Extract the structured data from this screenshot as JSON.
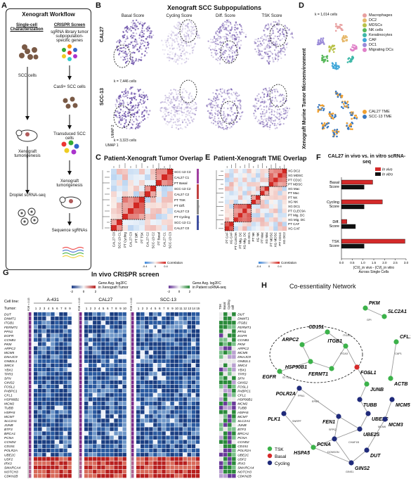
{
  "panelA": {
    "letter": "A",
    "title": "Xenograft Workflow",
    "left_header": "Single-cell Characterization",
    "right_header": "CRISPR Screen",
    "left_steps": [
      "SCC cells",
      "Xenograft tumorigenesis",
      "Droplet scRNA-seq"
    ],
    "right_steps": [
      "sgRNA library tumor subpopulation-specific genes",
      "Cas9+ SCC cells",
      "Transduced SCC cells",
      "Xenograft tumorigenesis",
      "Sequence sgRNAs"
    ]
  },
  "panelB": {
    "letter": "B",
    "title": "Xenograft SCC Subpopulations",
    "scores": [
      "Basal Score",
      "Cycling Score",
      "Diff. Score",
      "TSK Score"
    ],
    "rows": [
      {
        "label": "CAL27",
        "cells": "k = 7,446 cells"
      },
      {
        "label": "SCC-13",
        "cells": "k = 3,323 cells"
      }
    ],
    "umap1": "UMAP 1",
    "umap2": "UMAP 2"
  },
  "panelD": {
    "letter": "D",
    "side_title": "Xenograft Murine Tumor Microenvironment",
    "cells": "k = 1,014 cells",
    "legend1": [
      {
        "label": "Macrophages",
        "color": "#e8a0a0"
      },
      {
        "label": "DC2",
        "color": "#e6b86a"
      },
      {
        "label": "MDSCs",
        "color": "#b9c24a"
      },
      {
        "label": "NK cells",
        "color": "#57b85a"
      },
      {
        "label": "Keratinocytes",
        "color": "#3fb8a8"
      },
      {
        "label": "CAF",
        "color": "#3fa6d8"
      },
      {
        "label": "DC1",
        "color": "#9a8ad8"
      },
      {
        "label": "Migrating DCs",
        "color": "#e080c8"
      }
    ],
    "legend2": [
      {
        "label": "CAL27 TME",
        "color": "#f0a030"
      },
      {
        "label": "SCC-13 TME",
        "color": "#3a78c0"
      }
    ]
  },
  "panelC": {
    "letter": "C",
    "title": "Patient-Xenograft Tumor Overlap",
    "row_labels": [
      "SCC-13 C3",
      "CAL27 C1",
      "PT Basal",
      "SCC-13 C2",
      "CAL27 C2",
      "PT TSK",
      "PT Diff.",
      "CAL27 C3",
      "PT Cycling",
      "SCC-13 C1",
      "CAL27 C0"
    ],
    "col_labels": [
      "CAL27 C0",
      "SCC-13 C1",
      "PT Cycling",
      "CAL27 C3",
      "PT Diff.",
      "PT TSK",
      "CAL27 C2",
      "SCC-13 C2",
      "PT Basal",
      "CAL27 C1",
      "SCC-13 C3"
    ],
    "side_tags": [
      "Basal",
      "TSK",
      "Diff.",
      "Cycling"
    ],
    "corr_label": "Correlation",
    "corr_ticks": [
      "-0.4",
      "0",
      "0.4"
    ]
  },
  "panelE": {
    "letter": "E",
    "title": "Patient-Xenograft TME Overlap",
    "row_labels": [
      "XG DC2",
      "XG MDSC",
      "PT CD1C",
      "PT MDSC",
      "XG Mac",
      "PT Mac",
      "PT NK",
      "XG NK",
      "XG DC1",
      "PT CLEC9A",
      "PT Mig. DC",
      "XG Mig. DC",
      "PT CAF",
      "XG CAF"
    ],
    "col_labels": [
      "PT CAF",
      "XG CAF",
      "PT CLEC9A",
      "PT Mig. DC",
      "XG Mig. DC",
      "XG DC1",
      "PT NK",
      "XG NK",
      "PT Mac",
      "XG Mac",
      "PT MDSC",
      "XG MDSC",
      "PT CD1C",
      "XG DC2"
    ],
    "corr_label": "Correlation",
    "corr_ticks": [
      "-0.4",
      "0",
      "0.4"
    ]
  },
  "panelF": {
    "letter": "F",
    "title": "CAL27 in vivo vs. in vitro scRNA-seq",
    "legend": [
      {
        "label": "In vivo",
        "color": "#d42a2a"
      },
      {
        "label": "In vitro",
        "color": "#111111"
      }
    ],
    "categories": [
      "Basal Score",
      "Cycling Score",
      "Diff. Score",
      "TSK Score"
    ],
    "xlabel": "|CV|_in vivo - |CV|_in vitro Across Single Cells",
    "ticks": [
      "0.0",
      "0.5",
      "1.0",
      "1.5",
      "2.0",
      "2.5",
      "3.0"
    ]
  },
  "chart_data": {
    "type": "bar",
    "title": "CAL27 in vivo vs. in vitro scRNA-seq",
    "categories": [
      "Basal Score",
      "Cycling Score",
      "Diff. Score",
      "TSK Score"
    ],
    "series": [
      {
        "name": "In vivo",
        "values": [
          1.45,
          1.9,
          0.25,
          2.95
        ]
      },
      {
        "name": "In vitro",
        "values": [
          1.05,
          1.05,
          0.65,
          1.05
        ]
      }
    ],
    "xlabel": "|CV|_in vivo - |CV|_in vitro Across Single Cells",
    "xlim": [
      0,
      3.0
    ]
  },
  "panelG": {
    "letter": "G",
    "title": "In vivo CRISPR screen",
    "legend_left": "Gene Avg. log2FC in Xenograft Tumor",
    "legend_right": "Gene Avg. log2FC in Patient scRNA-seq",
    "legend_left_ticks": [
      "-2",
      "0",
      "2"
    ],
    "legend_right_ticks": [
      "-2",
      "0",
      "2"
    ],
    "cell_line_label": "Cell line:",
    "tumor_label": "Tumor:",
    "cell_lines": [
      "A-431",
      "CAL27",
      "SCC-13"
    ],
    "tumors_a431": [
      "1",
      "2",
      "3",
      "4",
      "5",
      "6",
      "7",
      "8",
      "9"
    ],
    "tumors_cal27": [
      "1",
      "2",
      "3",
      "4",
      "5",
      "6",
      "7",
      "8",
      "9",
      "10"
    ],
    "tumors_scc13": [
      "1",
      "2",
      "3",
      "4",
      "5",
      "6",
      "7",
      "8",
      "9",
      "10",
      "11",
      "12",
      "13",
      "14",
      "15"
    ],
    "fdr_label": "FDR < 0.15",
    "pt_cols": [
      "TSK",
      "Basal",
      "Cycling",
      "Diff"
    ],
    "genes": [
      "DUT",
      "DNMT1",
      "ITGB1",
      "FERMT1",
      "PFN1",
      "EGFR",
      "CCNB1",
      "PKM",
      "ARPC2",
      "MCM5",
      "DNAJC9",
      "GNB2L1",
      "SMC4",
      "YBX1",
      "TPR3",
      "SFN",
      "GINS2",
      "FOSL1",
      "PABPC1",
      "CFL1",
      "HSP90B1",
      "MCM2",
      "TUBB",
      "HSPA5",
      "MCM7",
      "SLC2A1",
      "JUNB",
      "BTF3",
      "BRCA1",
      "PCNA",
      "CCND2",
      "CD151",
      "POLR2A",
      "UBE2C",
      "USF2",
      "IRX3",
      "SMARCA4",
      "NOTCH3",
      "CDKN2B"
    ]
  },
  "panelH": {
    "letter": "H",
    "title": "Co-essentiality Network",
    "nodes": [
      {
        "label": "PKM",
        "group": "TSK"
      },
      {
        "label": "SLC2A1",
        "group": "TSK"
      },
      {
        "label": "ARPC2",
        "group": "TSK"
      },
      {
        "label": "CD151",
        "group": "TSK"
      },
      {
        "label": "ITGB1",
        "group": "TSK"
      },
      {
        "label": "HSP90B1",
        "group": "TSK"
      },
      {
        "label": "EGFR",
        "group": "TSK"
      },
      {
        "label": "FERMT1",
        "group": "TSK"
      },
      {
        "label": "FOSL1",
        "group": "Basal"
      },
      {
        "label": "CFL1",
        "group": "TSK"
      },
      {
        "label": "JUNB",
        "group": "TSK"
      },
      {
        "label": "ACTB",
        "group": "TSK"
      },
      {
        "label": "POLR2A",
        "group": "Cycling"
      },
      {
        "label": "TUBB",
        "group": "Cycling"
      },
      {
        "label": "UBE2C",
        "group": "Cycling"
      },
      {
        "label": "MCM5",
        "group": "Cycling"
      },
      {
        "label": "PLK1",
        "group": "Cycling"
      },
      {
        "label": "FEN1",
        "group": "Cycling"
      },
      {
        "label": "UBE2S",
        "group": "Cycling"
      },
      {
        "label": "MCM3",
        "group": "Cycling"
      },
      {
        "label": "PCNA",
        "group": "Cycling"
      },
      {
        "label": "HSPA5",
        "group": "TSK"
      },
      {
        "label": "DUT",
        "group": "Cycling"
      },
      {
        "label": "GINS2",
        "group": "Cycling"
      }
    ],
    "edge_labels": [
      "GPI",
      "CAP1",
      "ITGA3",
      "STT3A",
      "CMAS",
      "PPA1",
      "EPAS",
      "SNRPF",
      "SFPQ",
      "CHAF1B",
      "MCM6",
      "DONSON",
      "GINS1",
      "ITGA3"
    ],
    "legend": [
      {
        "label": "TSK",
        "color": "#3cb24a"
      },
      {
        "label": "Basal",
        "color": "#d62a2a"
      },
      {
        "label": "Cycling",
        "color": "#1f2a7a"
      }
    ]
  }
}
